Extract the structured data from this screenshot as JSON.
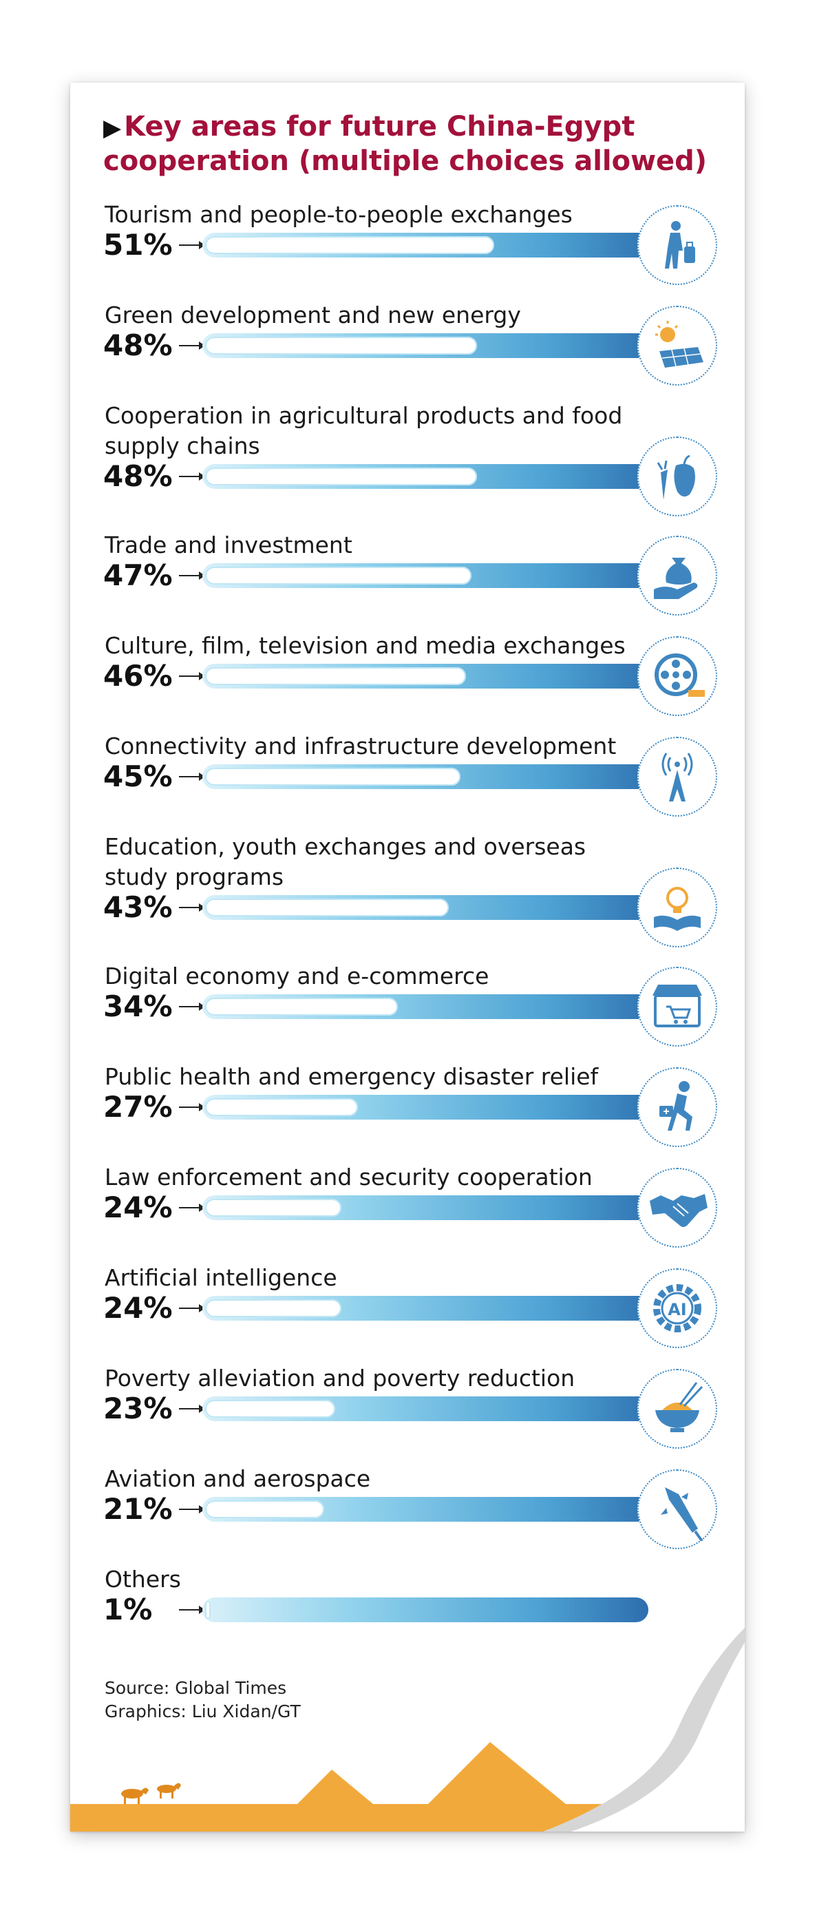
{
  "title": "Key areas for future China-Egypt cooperation (multiple choices allowed)",
  "title_color": "#a3113b",
  "bar_color": "#4ea3d4",
  "chart_data": {
    "type": "bar",
    "orientation": "horizontal",
    "title": "Key areas for future China-Egypt cooperation (multiple choices allowed)",
    "categories": [
      "Tourism and people-to-people exchanges",
      "Green development and new energy",
      "Cooperation in agricultural products and food supply chains",
      "Trade and investment",
      "Culture, film, television and media exchanges",
      "Connectivity and infrastructure development",
      "Education, youth exchanges and overseas study programs",
      "Digital economy and e-commerce",
      "Public health and emergency disaster relief",
      "Law enforcement and security cooperation",
      "Artificial intelligence",
      "Poverty alleviation and poverty reduction",
      "Aviation and aerospace",
      "Others"
    ],
    "values": [
      51,
      48,
      48,
      47,
      46,
      45,
      43,
      34,
      27,
      24,
      24,
      23,
      21,
      1
    ],
    "value_labels": [
      "51%",
      "48%",
      "48%",
      "47%",
      "46%",
      "45%",
      "43%",
      "34%",
      "27%",
      "24%",
      "24%",
      "23%",
      "21%",
      "1%"
    ],
    "unit": "%",
    "xlim": [
      0,
      100
    ],
    "grid": false,
    "icons": [
      "traveler-with-luggage-icon",
      "solar-panel-sun-icon",
      "carrot-pepper-icon",
      "money-bag-hand-icon",
      "film-reel-icon",
      "signal-tower-icon",
      "lightbulb-book-icon",
      "online-shop-cart-icon",
      "running-medic-icon",
      "handshake-icon",
      "ai-gear-icon",
      "rice-bowl-chopsticks-icon",
      "rocket-icon",
      ""
    ]
  },
  "source": "Source: Global Times",
  "graphics": "Graphics: Liu Xidan/GT"
}
